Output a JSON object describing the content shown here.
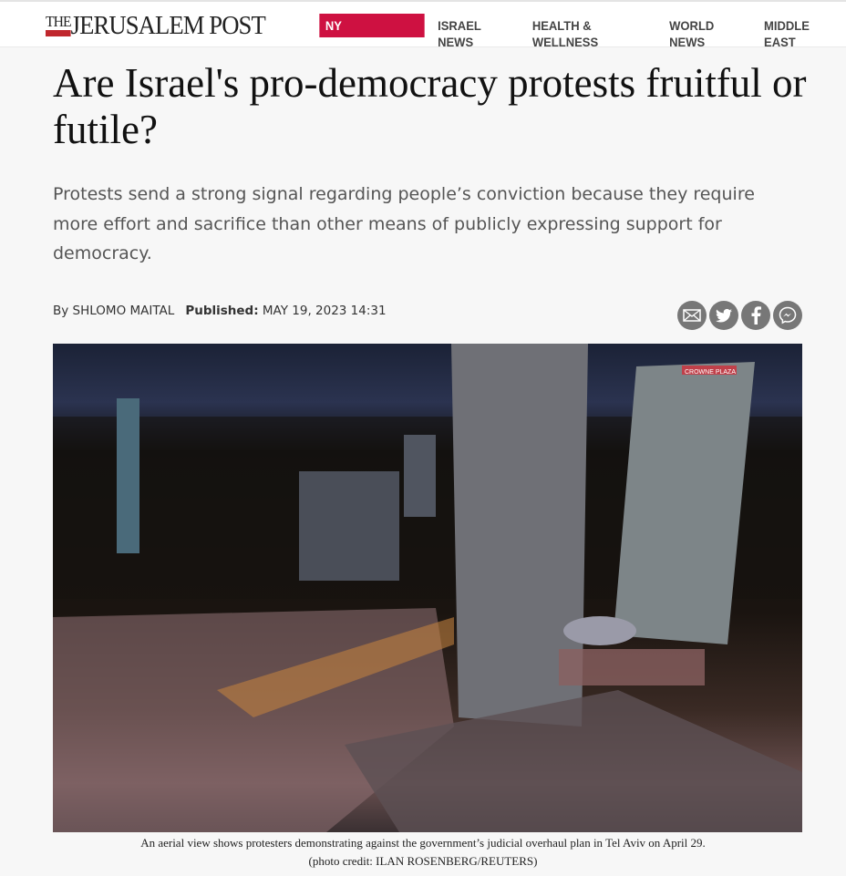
{
  "header": {
    "logo": "THE JERUSALEM POST",
    "logo_the": "THE",
    "logo_rest": "JERUSALEM POST",
    "nav": [
      {
        "label": "NY CONFERENCE",
        "highlight": true
      },
      {
        "label": "ISRAEL NEWS"
      },
      {
        "label": "HEALTH & WELLNESS"
      },
      {
        "label": "WORLD NEWS"
      },
      {
        "label": "MIDDLE EAST"
      }
    ],
    "accent": "#ce1141"
  },
  "article": {
    "title": "Are Israel's pro-democracy protests fruitful or futile?",
    "subtitle": "Protests send a strong signal regarding people’s conviction because they require more effort and sacrifice than other means of publicly expressing support for democracy.",
    "byline": "By SHLOMO MAITAL",
    "published_label": "Published:",
    "published_date": "MAY 19, 2023 14:31",
    "share": [
      "mail-icon",
      "twitter-icon",
      "facebook-icon",
      "messenger-icon"
    ],
    "image_caption": "An aerial view shows protesters demonstrating against the government’s judicial overhaul plan in Tel Aviv on April 29.",
    "photo_credit": "(photo credit: ILAN ROSENBERG/REUTERS)",
    "photo_signage": "CROWNE PLAZA"
  }
}
